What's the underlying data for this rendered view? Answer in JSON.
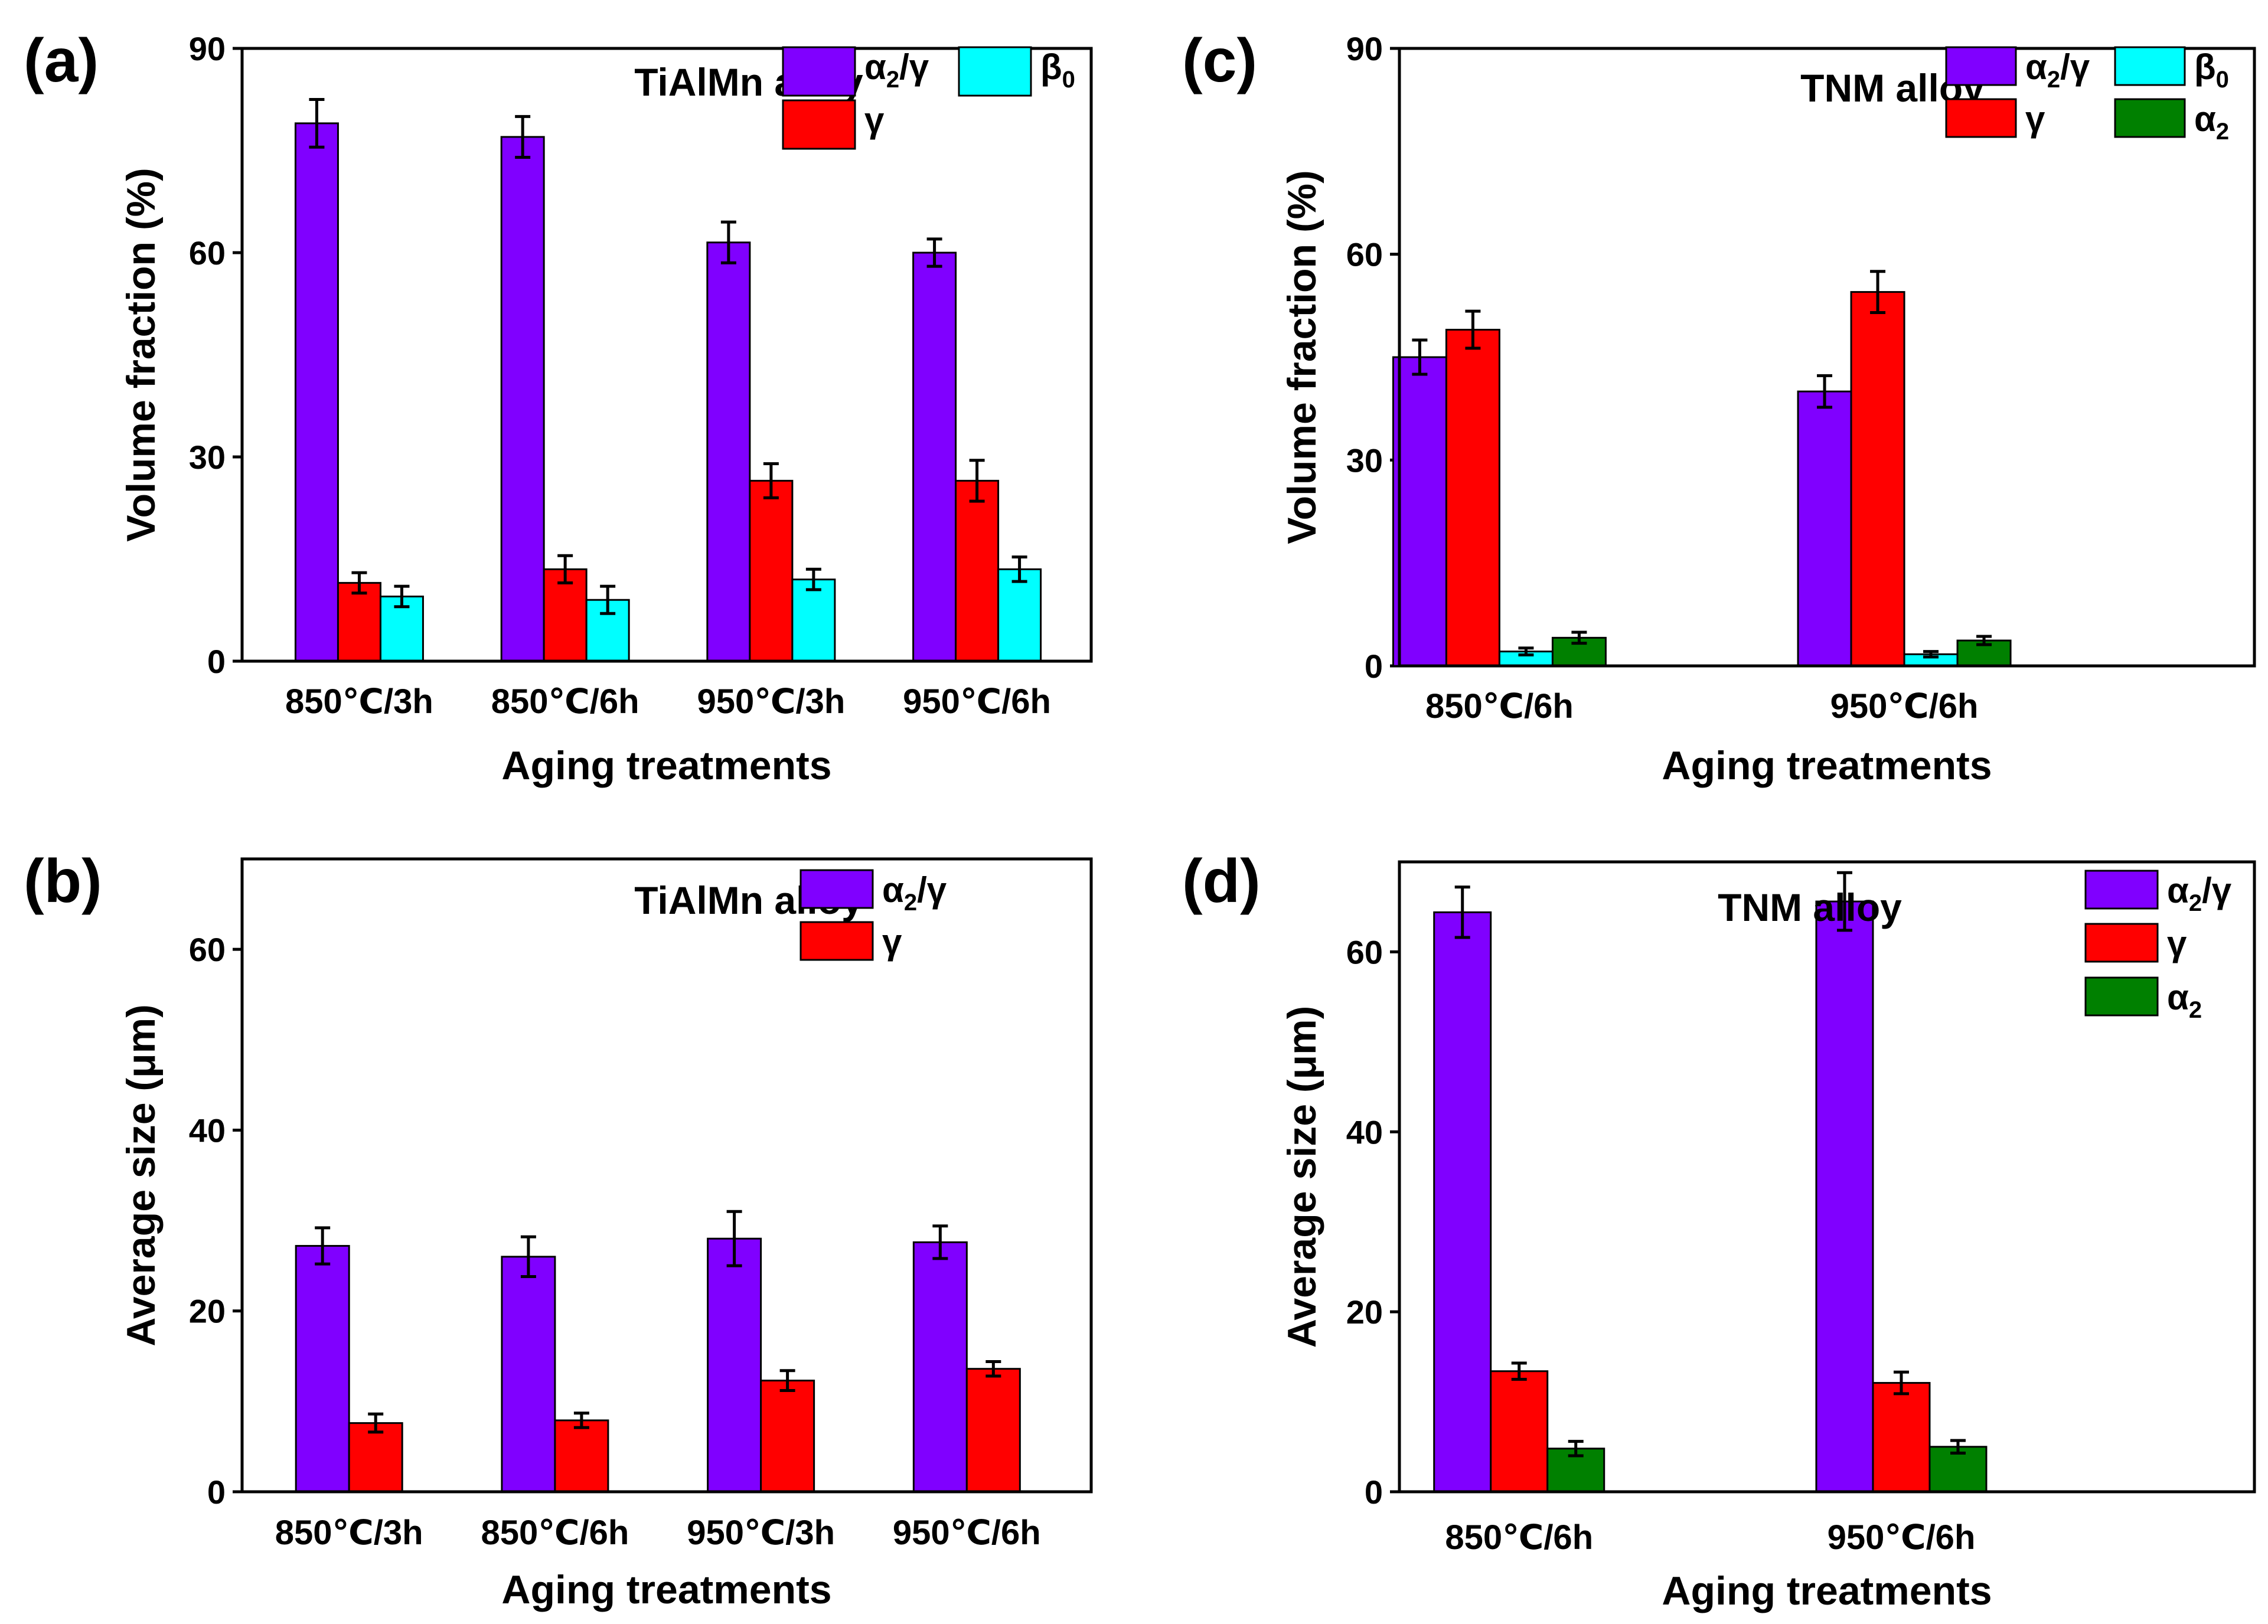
{
  "chart_data": [
    {
      "panel": "(a)",
      "type": "bar",
      "title": "TiAlMn alloy",
      "xlabel": "Aging treatments",
      "ylabel": "Volume fraction (%)",
      "ylim": [
        0,
        90
      ],
      "yticks": [
        "0",
        "30",
        "60",
        "90"
      ],
      "categories": [
        "850℃/3h",
        "850℃/6h",
        "950℃/3h",
        "950℃/6h"
      ],
      "series": [
        {
          "name": "α2/γ",
          "color": "#8000ff",
          "values": [
            79,
            77,
            61.5,
            60
          ],
          "errors": [
            3.5,
            3,
            3,
            2
          ]
        },
        {
          "name": "γ",
          "color": "#ff0000",
          "values": [
            11.5,
            13.5,
            26.5,
            26.5
          ],
          "errors": [
            1.5,
            2,
            2.5,
            3
          ]
        },
        {
          "name": "β0",
          "color": "#00ffff",
          "values": [
            9.5,
            9,
            12,
            13.5
          ],
          "errors": [
            1.5,
            2,
            1.5,
            1.8
          ]
        }
      ],
      "legend": [
        {
          "name": "α2/γ",
          "base": "α",
          "sub": "2",
          "rest": "/γ",
          "color": "#8000ff"
        },
        {
          "name": "β0",
          "base": "β",
          "sub": "0",
          "rest": "",
          "color": "#00ffff"
        },
        {
          "name": "γ",
          "base": "γ",
          "sub": "",
          "rest": "",
          "color": "#ff0000"
        }
      ]
    },
    {
      "panel": "(b)",
      "type": "bar",
      "title": "TiAlMn alloy",
      "xlabel": "Aging treatments",
      "ylabel": "Average size (μm)",
      "ylim": [
        0,
        70
      ],
      "yticks": [
        "0",
        "20",
        "40",
        "60"
      ],
      "categories": [
        "850℃/3h",
        "850℃/6h",
        "950℃/3h",
        "950℃/6h"
      ],
      "series": [
        {
          "name": "α2/γ",
          "color": "#8000ff",
          "values": [
            27.2,
            26,
            28,
            27.6
          ],
          "errors": [
            2,
            2.2,
            3,
            1.8
          ]
        },
        {
          "name": "γ",
          "color": "#ff0000",
          "values": [
            7.6,
            7.9,
            12.3,
            13.6
          ],
          "errors": [
            1,
            0.8,
            1.1,
            0.8
          ]
        }
      ],
      "legend": [
        {
          "name": "α2/γ",
          "base": "α",
          "sub": "2",
          "rest": "/γ",
          "color": "#8000ff"
        },
        {
          "name": "γ",
          "base": "γ",
          "sub": "",
          "rest": "",
          "color": "#ff0000"
        }
      ]
    },
    {
      "panel": "(c)",
      "type": "bar",
      "title": "TNM alloy",
      "xlabel": "Aging treatments",
      "ylabel": "Volume fraction (%)",
      "ylim": [
        0,
        90
      ],
      "yticks": [
        "0",
        "30",
        "60",
        "90"
      ],
      "categories": [
        "850℃/6h",
        "950℃/6h"
      ],
      "series": [
        {
          "name": "α2/γ",
          "color": "#8000ff",
          "values": [
            45,
            40
          ],
          "errors": [
            2.5,
            2.3
          ]
        },
        {
          "name": "γ",
          "color": "#ff0000",
          "values": [
            49,
            54.5
          ],
          "errors": [
            2.7,
            3
          ]
        },
        {
          "name": "β0",
          "color": "#00ffff",
          "values": [
            2.1,
            1.7
          ],
          "errors": [
            0.5,
            0.4
          ]
        },
        {
          "name": "α2",
          "color": "#008000",
          "values": [
            4.1,
            3.7
          ],
          "errors": [
            0.8,
            0.6
          ]
        }
      ],
      "legend": [
        {
          "name": "α2/γ",
          "base": "α",
          "sub": "2",
          "rest": "/γ",
          "color": "#8000ff"
        },
        {
          "name": "β0",
          "base": "β",
          "sub": "0",
          "rest": "",
          "color": "#00ffff"
        },
        {
          "name": "γ",
          "base": "γ",
          "sub": "",
          "rest": "",
          "color": "#ff0000"
        },
        {
          "name": "α2",
          "base": "α",
          "sub": "2",
          "rest": "",
          "color": "#008000"
        }
      ]
    },
    {
      "panel": "(d)",
      "type": "bar",
      "title": "TNM alloy",
      "xlabel": "Aging treatments",
      "ylabel": "Average size (μm)",
      "ylim": [
        0,
        70
      ],
      "yticks": [
        "0",
        "20",
        "40",
        "60"
      ],
      "categories": [
        "850℃/6h",
        "950℃/6h"
      ],
      "series": [
        {
          "name": "α2/γ",
          "color": "#8000ff",
          "values": [
            64.4,
            65.6
          ],
          "errors": [
            2.8,
            3.2
          ]
        },
        {
          "name": "γ",
          "color": "#ff0000",
          "values": [
            13.4,
            12.1
          ],
          "errors": [
            0.9,
            1.2
          ]
        },
        {
          "name": "α2",
          "color": "#008000",
          "values": [
            4.8,
            5
          ],
          "errors": [
            0.8,
            0.7
          ]
        }
      ],
      "legend": [
        {
          "name": "α2/γ",
          "base": "α",
          "sub": "2",
          "rest": "/γ",
          "color": "#8000ff"
        },
        {
          "name": "γ",
          "base": "γ",
          "sub": "",
          "rest": "",
          "color": "#ff0000"
        },
        {
          "name": "α2",
          "base": "α",
          "sub": "2",
          "rest": "",
          "color": "#008000"
        }
      ]
    }
  ]
}
